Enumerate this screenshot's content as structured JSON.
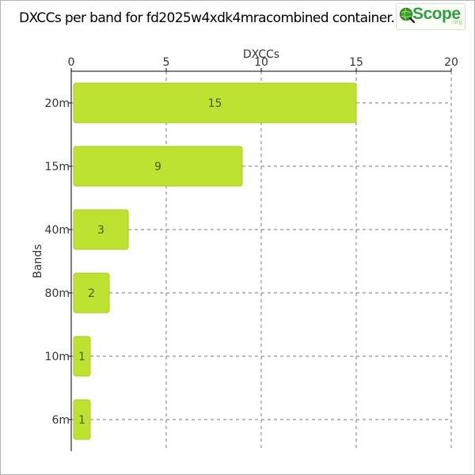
{
  "title": "DXCCs per band for fd2025w4xdk4mracombined container.",
  "logo": {
    "text": "Scope",
    "suffix": ".org"
  },
  "colors": {
    "bar": "#bde22f",
    "bar_stroke": "#a6cc22",
    "grid": "#777777",
    "axis": "#000000"
  },
  "chart_data": {
    "type": "bar",
    "orientation": "horizontal",
    "title": "DXCCs per band for fd2025w4xdk4mracombined container.",
    "xlabel": "DXCCs",
    "ylabel": "Bands",
    "xaxis_position": "top",
    "xlim": [
      0,
      20
    ],
    "xticks": [
      0,
      5,
      10,
      15,
      20
    ],
    "grid": true,
    "categories": [
      "20m",
      "15m",
      "40m",
      "80m",
      "10m",
      "6m"
    ],
    "values": [
      15,
      9,
      3,
      2,
      1,
      1
    ]
  }
}
